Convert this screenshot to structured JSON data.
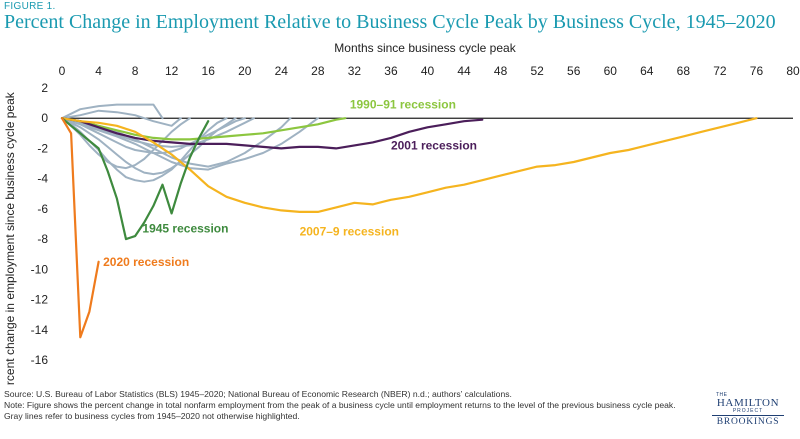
{
  "figure": {
    "label": "FIGURE 1.",
    "title": "Percent Change in Employment Relative to Business Cycle Peak by Business Cycle, 1945–2020"
  },
  "footnote": {
    "source": "Source:  U.S. Bureau of Labor Statistics (BLS) 1945–2020; National Bureau of Economic Research (NBER) n.d.; authors’ calculations.",
    "note": "Note: Figure shows the percent change in total nonfarm employment from the peak of a business cycle until employment returns to the level of the previous business cycle peak. Gray lines refer to business cycles from 1945–2020 not otherwise highlighted."
  },
  "logo": {
    "the": "THE",
    "hamilton": "HAMILTON",
    "project": "PROJECT",
    "brookings": "BROOKINGS"
  },
  "chart_data": {
    "type": "line",
    "xlabel": "Months since business cycle peak",
    "ylabel": "Percent change in employment since business cycle peak",
    "xlim": [
      0,
      80
    ],
    "ylim": [
      -16,
      2
    ],
    "xticks": [
      0,
      4,
      8,
      12,
      16,
      20,
      24,
      28,
      32,
      36,
      40,
      44,
      48,
      52,
      56,
      60,
      64,
      68,
      72,
      76,
      80
    ],
    "yticks": [
      2,
      0,
      -2,
      -4,
      -6,
      -8,
      -10,
      -12,
      -14,
      -16
    ],
    "xaxis_position": "top",
    "grid": false,
    "colors": {
      "gray": "#9fb2c2",
      "recession_1990": "#8cc63f",
      "recession_2001": "#4b1e5a",
      "recession_2007": "#f5b41f",
      "recession_1945": "#3e8a3e",
      "recession_2020": "#ef7b1d",
      "title": "#1a9ab0"
    },
    "series": [
      {
        "name": "",
        "color_key": "gray",
        "x": [
          0,
          1,
          2,
          3,
          4,
          5,
          6,
          7,
          8,
          9,
          10,
          11,
          12,
          13,
          14,
          15,
          16,
          17,
          18,
          19
        ],
        "y": [
          0,
          -0.3,
          -0.6,
          -1,
          -1.4,
          -1.9,
          -2.4,
          -2.9,
          -3.3,
          -3.6,
          -3.7,
          -3.6,
          -3.3,
          -2.9,
          -2.4,
          -1.9,
          -1.3,
          -0.8,
          -0.4,
          0
        ]
      },
      {
        "name": "",
        "color_key": "gray",
        "x": [
          0,
          1,
          2,
          3,
          4,
          5,
          6,
          7,
          8,
          9,
          10,
          11,
          12,
          13,
          14,
          15,
          16,
          17,
          18
        ],
        "y": [
          0,
          -0.4,
          -0.9,
          -1.5,
          -2.1,
          -2.8,
          -3.4,
          -3.9,
          -4.1,
          -4.2,
          -4.1,
          -3.8,
          -3.4,
          -2.8,
          -2.1,
          -1.4,
          -0.8,
          -0.3,
          0
        ]
      },
      {
        "name": "",
        "color_key": "gray",
        "x": [
          0,
          1,
          2,
          3,
          4,
          5,
          6,
          7,
          8,
          9,
          10,
          11,
          12,
          13,
          14
        ],
        "y": [
          0,
          -0.5,
          -1.1,
          -1.8,
          -2.4,
          -2.9,
          -3.2,
          -3.3,
          -3.1,
          -2.7,
          -2.1,
          -1.5,
          -0.9,
          -0.4,
          0
        ]
      },
      {
        "name": "",
        "color_key": "gray",
        "x": [
          0,
          2,
          4,
          6,
          8,
          10,
          12,
          14,
          16,
          18,
          20,
          22,
          24,
          26,
          28
        ],
        "y": [
          0,
          -0.4,
          -0.8,
          -1.2,
          -1.7,
          -2.3,
          -2.9,
          -3.3,
          -3.4,
          -3.0,
          -2.7,
          -2.3,
          -1.7,
          -0.9,
          0
        ]
      },
      {
        "name": "",
        "color_key": "gray",
        "x": [
          0,
          2,
          4,
          6,
          8,
          10,
          12,
          14,
          16,
          18,
          20,
          22,
          24,
          25
        ],
        "y": [
          0,
          -0.2,
          -0.5,
          -0.9,
          -1.4,
          -2.0,
          -2.6,
          -3.0,
          -3.2,
          -2.9,
          -2.3,
          -1.5,
          -0.6,
          0
        ]
      },
      {
        "name": "",
        "color_key": "gray",
        "x": [
          0,
          1,
          2,
          3,
          4,
          5,
          6,
          7,
          8,
          9,
          10,
          11,
          12,
          13,
          14,
          15,
          16,
          17,
          18,
          19,
          20
        ],
        "y": [
          0,
          -0.2,
          -0.4,
          -0.7,
          -1.0,
          -1.3,
          -1.6,
          -1.9,
          -2.1,
          -2.2,
          -2.3,
          -2.3,
          -2.2,
          -2.0,
          -1.7,
          -1.4,
          -1.1,
          -0.8,
          -0.5,
          -0.2,
          0
        ]
      },
      {
        "name": "",
        "color_key": "gray",
        "x": [
          0,
          2,
          4,
          6,
          8,
          10,
          12,
          14,
          16,
          18,
          20,
          21
        ],
        "y": [
          0,
          -0.3,
          -0.7,
          -1.1,
          -1.5,
          -1.8,
          -1.9,
          -1.8,
          -1.4,
          -0.9,
          -0.3,
          0
        ]
      },
      {
        "name": "",
        "color_key": "gray",
        "x": [
          0,
          2,
          4,
          6,
          8,
          10,
          11
        ],
        "y": [
          0,
          0.6,
          0.8,
          0.9,
          0.9,
          0.9,
          0
        ]
      },
      {
        "name": "",
        "color_key": "gray",
        "x": [
          0,
          2,
          4,
          6,
          8,
          10,
          12,
          13
        ],
        "y": [
          0,
          0.2,
          0.5,
          0.4,
          0.2,
          -0.2,
          -0.5,
          0
        ]
      },
      {
        "name": "1990–91 recession",
        "color_key": "recession_1990",
        "x": [
          0,
          2,
          4,
          6,
          8,
          10,
          12,
          14,
          16,
          18,
          20,
          22,
          24,
          26,
          28,
          30,
          31
        ],
        "y": [
          0,
          -0.2,
          -0.5,
          -0.8,
          -1.1,
          -1.3,
          -1.4,
          -1.4,
          -1.3,
          -1.2,
          -1.1,
          -1.0,
          -0.8,
          -0.6,
          -0.4,
          -0.1,
          0
        ]
      },
      {
        "name": "2001 recession",
        "color_key": "recession_2001",
        "x": [
          0,
          2,
          4,
          6,
          8,
          10,
          12,
          14,
          16,
          18,
          20,
          22,
          24,
          26,
          28,
          30,
          32,
          34,
          36,
          38,
          40,
          42,
          44,
          46
        ],
        "y": [
          0,
          -0.2,
          -0.6,
          -1.0,
          -1.3,
          -1.5,
          -1.6,
          -1.7,
          -1.7,
          -1.7,
          -1.8,
          -1.9,
          -2.0,
          -1.9,
          -1.9,
          -2.0,
          -1.8,
          -1.6,
          -1.3,
          -0.9,
          -0.6,
          -0.4,
          -0.2,
          -0.1
        ]
      },
      {
        "name": "2007–9 recession",
        "color_key": "recession_2007",
        "x": [
          0,
          2,
          4,
          6,
          8,
          10,
          12,
          14,
          16,
          18,
          20,
          22,
          24,
          26,
          28,
          30,
          32,
          34,
          36,
          38,
          40,
          42,
          44,
          46,
          48,
          50,
          52,
          54,
          56,
          58,
          60,
          62,
          64,
          66,
          68,
          70,
          72,
          74,
          76
        ],
        "y": [
          0,
          -0.2,
          -0.3,
          -0.5,
          -0.9,
          -1.6,
          -2.4,
          -3.4,
          -4.5,
          -5.2,
          -5.6,
          -5.9,
          -6.1,
          -6.2,
          -6.2,
          -5.9,
          -5.6,
          -5.7,
          -5.4,
          -5.2,
          -4.9,
          -4.6,
          -4.4,
          -4.1,
          -3.8,
          -3.5,
          -3.2,
          -3.1,
          -2.9,
          -2.6,
          -2.3,
          -2.1,
          -1.8,
          -1.5,
          -1.2,
          -0.9,
          -0.6,
          -0.3,
          0
        ]
      },
      {
        "name": "1945 recession",
        "color_key": "recession_1945",
        "x": [
          0,
          1,
          2,
          3,
          4,
          5,
          6,
          7,
          8,
          9,
          10,
          11,
          12,
          13,
          14,
          15,
          16
        ],
        "y": [
          0,
          -0.5,
          -1.0,
          -1.5,
          -2.0,
          -3.5,
          -5.3,
          -8.0,
          -7.8,
          -6.9,
          -5.8,
          -4.4,
          -6.3,
          -4.3,
          -2.6,
          -1.3,
          -0.2
        ]
      },
      {
        "name": "2020 recession",
        "color_key": "recession_2020",
        "x": [
          0,
          1,
          2,
          3,
          4
        ],
        "y": [
          0,
          -1.0,
          -14.5,
          -12.8,
          -9.5
        ]
      }
    ],
    "annotations": [
      {
        "text": "1990–91 recession",
        "color_key": "recession_1990",
        "x": 31.5,
        "y": 0.9
      },
      {
        "text": "2001 recession",
        "color_key": "recession_2001",
        "x": 36,
        "y": -1.8
      },
      {
        "text": "2007–9 recession",
        "color_key": "recession_2007",
        "x": 26,
        "y": -7.5
      },
      {
        "text": "1945 recession",
        "color_key": "recession_1945",
        "x": 8.8,
        "y": -7.3
      },
      {
        "text": "2020 recession",
        "color_key": "recession_2020",
        "x": 4.5,
        "y": -9.5
      }
    ]
  }
}
